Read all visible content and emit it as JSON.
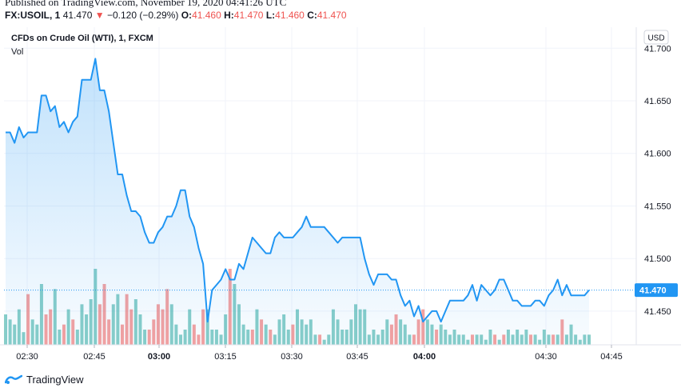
{
  "published": "Published on TradingView.com, November 19, 2020 04:41:26 UTC",
  "quote": {
    "symbol": "FX:USOIL, 1",
    "last": "41.470",
    "arrow": "▼",
    "change": "−0.120 (−0.29%)",
    "o_label": "O:",
    "o_value": "41.460",
    "h_label": "H:",
    "h_value": "41.470",
    "l_label": "L:",
    "l_value": "41.460",
    "c_label": "C:",
    "c_value": "41.470"
  },
  "legend": {
    "title": "CFDs on Crude Oil (WTI), 1, FXCM",
    "vol": "Vol"
  },
  "currency": "USD",
  "footer": {
    "brand": "TradingView"
  },
  "colors": {
    "line": "#2196f3",
    "up": "#26a69a",
    "down": "#ef5350",
    "text": "#131722",
    "grid": "#f0f3fa"
  },
  "chart_data": {
    "type": "area",
    "ylabel": "",
    "xlabel": "",
    "ylim": [
      41.418,
      41.72
    ],
    "yticks": [
      41.45,
      41.5,
      41.55,
      41.6,
      41.65,
      41.7
    ],
    "ytick_labels": [
      "41.450",
      "41.500",
      "41.550",
      "41.600",
      "41.650",
      "41.700"
    ],
    "xticks": [
      "02:30",
      "02:45",
      "03:00",
      "03:15",
      "03:30",
      "03:45",
      "04:00",
      "04:30",
      "04:45"
    ],
    "xticks_bold": [
      false,
      false,
      true,
      false,
      false,
      false,
      true,
      false,
      false
    ],
    "last_price": 41.47,
    "last_price_label": "41.470",
    "grid": true,
    "series": [
      {
        "type": "line",
        "values": [
          41.62,
          41.62,
          41.61,
          41.625,
          41.615,
          41.62,
          41.62,
          41.62,
          41.655,
          41.655,
          41.64,
          41.645,
          41.625,
          41.63,
          41.62,
          41.63,
          41.635,
          41.67,
          41.67,
          41.67,
          41.69,
          41.66,
          41.66,
          41.64,
          41.61,
          41.58,
          41.58,
          41.56,
          41.545,
          41.545,
          41.54,
          41.525,
          41.515,
          41.515,
          41.525,
          41.53,
          41.54,
          41.54,
          41.55,
          41.565,
          41.565,
          41.54,
          41.53,
          41.51,
          41.495,
          41.44,
          41.47,
          41.475,
          41.48,
          41.49,
          41.48,
          41.48,
          41.495,
          41.49,
          41.505,
          41.52,
          41.515,
          41.51,
          41.505,
          41.505,
          41.52,
          41.525,
          41.52,
          41.52,
          41.52,
          41.525,
          41.53,
          41.54,
          41.53,
          41.53,
          41.53,
          41.53,
          41.525,
          41.52,
          41.515,
          41.52,
          41.52,
          41.52,
          41.52,
          41.52,
          41.5,
          41.485,
          41.475,
          41.485,
          41.485,
          41.485,
          41.48,
          41.48,
          41.465,
          41.455,
          41.46,
          41.445,
          41.455,
          41.44,
          41.445,
          41.45,
          41.45,
          41.44,
          41.45,
          41.46,
          41.46,
          41.46,
          41.46,
          41.465,
          41.475,
          41.46,
          41.475,
          41.47,
          41.465,
          41.47,
          41.48,
          41.48,
          41.47,
          41.46,
          41.46,
          41.455,
          41.455,
          41.455,
          41.46,
          41.46,
          41.455,
          41.465,
          41.47,
          41.48,
          41.465,
          41.475,
          41.465,
          41.465,
          41.465,
          41.465,
          41.47
        ]
      },
      {
        "type": "volume",
        "name": "Vol",
        "values": [
          12,
          10,
          8,
          14,
          5,
          20,
          10,
          8,
          24,
          12,
          14,
          22,
          6,
          8,
          14,
          10,
          6,
          16,
          12,
          18,
          30,
          16,
          24,
          10,
          16,
          20,
          8,
          20,
          14,
          18,
          12,
          6,
          6,
          10,
          16,
          14,
          22,
          16,
          8,
          4,
          6,
          14,
          8,
          4,
          14,
          14,
          6,
          6,
          4,
          12,
          30,
          24,
          16,
          8,
          6,
          6,
          14,
          10,
          8,
          6,
          4,
          10,
          12,
          6,
          8,
          14,
          10,
          8,
          10,
          4,
          4,
          2,
          4,
          14,
          10,
          6,
          6,
          10,
          16,
          14,
          14,
          4,
          6,
          4,
          6,
          10,
          8,
          12,
          10,
          8,
          4,
          4,
          10,
          14,
          10,
          8,
          6,
          8,
          6,
          4,
          6,
          4,
          4,
          2,
          4,
          4,
          4,
          2,
          6,
          4,
          2,
          4,
          6,
          4,
          6,
          4,
          6,
          4,
          4,
          2,
          6,
          4,
          4,
          4,
          10,
          4,
          8,
          4,
          2,
          4,
          4
        ],
        "colors": [
          "up",
          "up",
          "up",
          "up",
          "up",
          "down",
          "up",
          "up",
          "up",
          "down",
          "down",
          "up",
          "up",
          "down",
          "up",
          "down",
          "up",
          "up",
          "up",
          "up",
          "up",
          "down",
          "down",
          "down",
          "up",
          "up",
          "down",
          "down",
          "down",
          "up",
          "up",
          "up",
          "down",
          "down",
          "down",
          "down",
          "down",
          "up",
          "up",
          "up",
          "up",
          "up",
          "down",
          "down",
          "down",
          "up",
          "up",
          "up",
          "up",
          "up",
          "down",
          "up",
          "up",
          "up",
          "up",
          "down",
          "up",
          "down",
          "up",
          "down",
          "up",
          "up",
          "up",
          "up",
          "down",
          "up",
          "up",
          "up",
          "up",
          "up",
          "down",
          "up",
          "up",
          "up",
          "up",
          "up",
          "up",
          "up",
          "up",
          "up",
          "up",
          "up",
          "up",
          "up",
          "up",
          "up",
          "down",
          "down",
          "up",
          "up",
          "up",
          "down",
          "down",
          "down",
          "up",
          "up",
          "down",
          "up",
          "up",
          "up",
          "up",
          "up",
          "up",
          "up",
          "down",
          "up",
          "up",
          "up",
          "up",
          "down",
          "up",
          "down",
          "up",
          "up",
          "up",
          "up",
          "up",
          "down",
          "up",
          "up",
          "up",
          "up",
          "down",
          "up",
          "down",
          "up",
          "up",
          "up",
          "up",
          "up",
          "up"
        ]
      }
    ]
  }
}
